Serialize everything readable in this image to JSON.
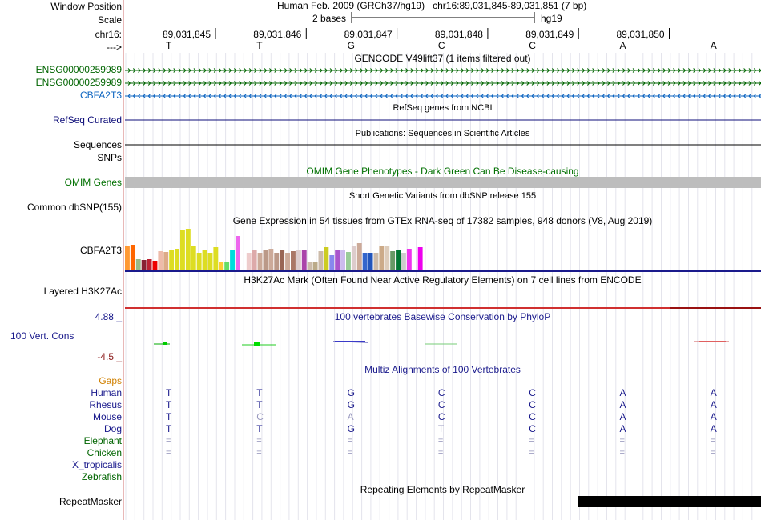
{
  "colors": {
    "gencode": "#006400",
    "cbfa2t3": "#0c64c0",
    "refseq": "#0c0c78",
    "omim": "#007000",
    "navy": "#1a1a8c",
    "gaps": "#d08000",
    "phylop_min": "#8b1a1a",
    "h3k27ac_line": "#d03030"
  },
  "header": {
    "position_label": "Window Position",
    "position_text": "Human Feb. 2009 (GRCh37/hg19)   chr16:89,031,845-89,031,851 (7 bp)",
    "scale_label": "Scale",
    "scale_text": "2 bases",
    "assembly": "hg19",
    "chrom_label": "chr16:",
    "strand_label": "--->",
    "coords": [
      "89,031,845",
      "89,031,846",
      "89,031,847",
      "89,031,848",
      "89,031,849",
      "89,031,850"
    ],
    "bases": [
      "T",
      "T",
      "G",
      "C",
      "C",
      "A",
      "A"
    ]
  },
  "gencode": {
    "title": "GENCODE V49lift37 (1 items filtered out)",
    "tracks": [
      "ENSG00000259989",
      "ENSG00000259989",
      "CBFA2T3"
    ]
  },
  "refseq": {
    "title": "RefSeq genes from NCBI",
    "label": "RefSeq Curated"
  },
  "publications": {
    "title": "Publications: Sequences in Scientific Articles",
    "label": "Sequences"
  },
  "snps": {
    "label": "SNPs"
  },
  "omim": {
    "title": "OMIM Gene Phenotypes - Dark Green Can Be Disease-causing",
    "label": "OMIM Genes"
  },
  "dbsnp": {
    "title": "Short Genetic Variants from dbSNP release 155",
    "label": "Common dbSNP(155)"
  },
  "gtex": {
    "title": "Gene Expression in 54 tissues from GTEx RNA-seq of 17382 samples, 948 donors (V8, Aug 2019)",
    "label": "CBFA2T3",
    "chart_data": {
      "type": "bar",
      "title": "Gene Expression in 54 tissues from GTEx RNA-seq of 17382 samples, 948 donors (V8, Aug 2019)",
      "xlabel": "",
      "ylabel": "",
      "ylim": [
        0,
        55
      ],
      "values": [
        30,
        32,
        14,
        13,
        14,
        12,
        24,
        23,
        26,
        27,
        51,
        52,
        30,
        22,
        25,
        22,
        29,
        10,
        11,
        25,
        43,
        0,
        22,
        26,
        22,
        25,
        27,
        22,
        25,
        22,
        24,
        25,
        26,
        10,
        10,
        24,
        29,
        19,
        26,
        25,
        23,
        31,
        34,
        22,
        22,
        22,
        30,
        31,
        24,
        25,
        22,
        27,
        0,
        29
      ],
      "colors": [
        "#ff9933",
        "#ff6600",
        "#99bb88",
        "#882233",
        "#bb2233",
        "#ee0000",
        "#eebbaa",
        "#ddaa88",
        "#dddd22",
        "#dddd22",
        "#dddd22",
        "#dddd22",
        "#dddd22",
        "#dddd22",
        "#dddd22",
        "#dddd22",
        "#dddd22",
        "#ffcc33",
        "#66dd66",
        "#00dddd",
        "#ee66ee",
        "#ffffff",
        "#eecccc",
        "#ddaaaa",
        "#ccaa99",
        "#bb9988",
        "#ccaa99",
        "#bb9988",
        "#996655",
        "#ccaa99",
        "#aa7766",
        "#ddcccc",
        "#aa44aa",
        "#ccbbaa",
        "#bbaa88",
        "#ccbbaa",
        "#cccc22",
        "#8888ee",
        "#aa55cc",
        "#ccbbee",
        "#99cc99",
        "#ddcccc",
        "#ccaa99",
        "#3366cc",
        "#2255bb",
        "#ccbbaa",
        "#ccaa88",
        "#ddccbb",
        "#669966",
        "#007733",
        "#cccccc",
        "#ee33ee",
        "#ffffff",
        "#ee00ee"
      ]
    }
  },
  "h3k27ac": {
    "title": "H3K27Ac Mark (Often Found Near Active Regulatory Elements) on 7 cell lines from ENCODE",
    "label": "Layered H3K27Ac"
  },
  "phylop": {
    "title": "100 vertebrates Basewise Conservation by PhyloP",
    "label": "100 Vert. Cons",
    "max": "4.88 _",
    "min": "-4.5 _"
  },
  "multiz": {
    "title": "Multiz Alignments of 100 Vertebrates",
    "gaps_label": "Gaps",
    "species": [
      {
        "name": "Human",
        "bases": [
          "T",
          "T",
          "G",
          "C",
          "C",
          "A",
          "A"
        ]
      },
      {
        "name": "Rhesus",
        "bases": [
          "T",
          "T",
          "G",
          "C",
          "C",
          "A",
          "A"
        ]
      },
      {
        "name": "Mouse",
        "bases": [
          "T",
          "C",
          "A",
          "C",
          "C",
          "A",
          "A"
        ]
      },
      {
        "name": "Dog",
        "bases": [
          "T",
          "T",
          "G",
          "T",
          "C",
          "A",
          "A"
        ]
      },
      {
        "name": "Elephant",
        "bases": [
          "=",
          "=",
          "=",
          "=",
          "=",
          "=",
          "="
        ]
      },
      {
        "name": "Chicken",
        "bases": [
          "=",
          "=",
          "=",
          "=",
          "=",
          "=",
          "="
        ]
      },
      {
        "name": "X_tropicalis",
        "bases": []
      },
      {
        "name": "Zebrafish",
        "bases": []
      }
    ]
  },
  "repeatmasker": {
    "title": "Repeating Elements by RepeatMasker",
    "label": "RepeatMasker"
  }
}
